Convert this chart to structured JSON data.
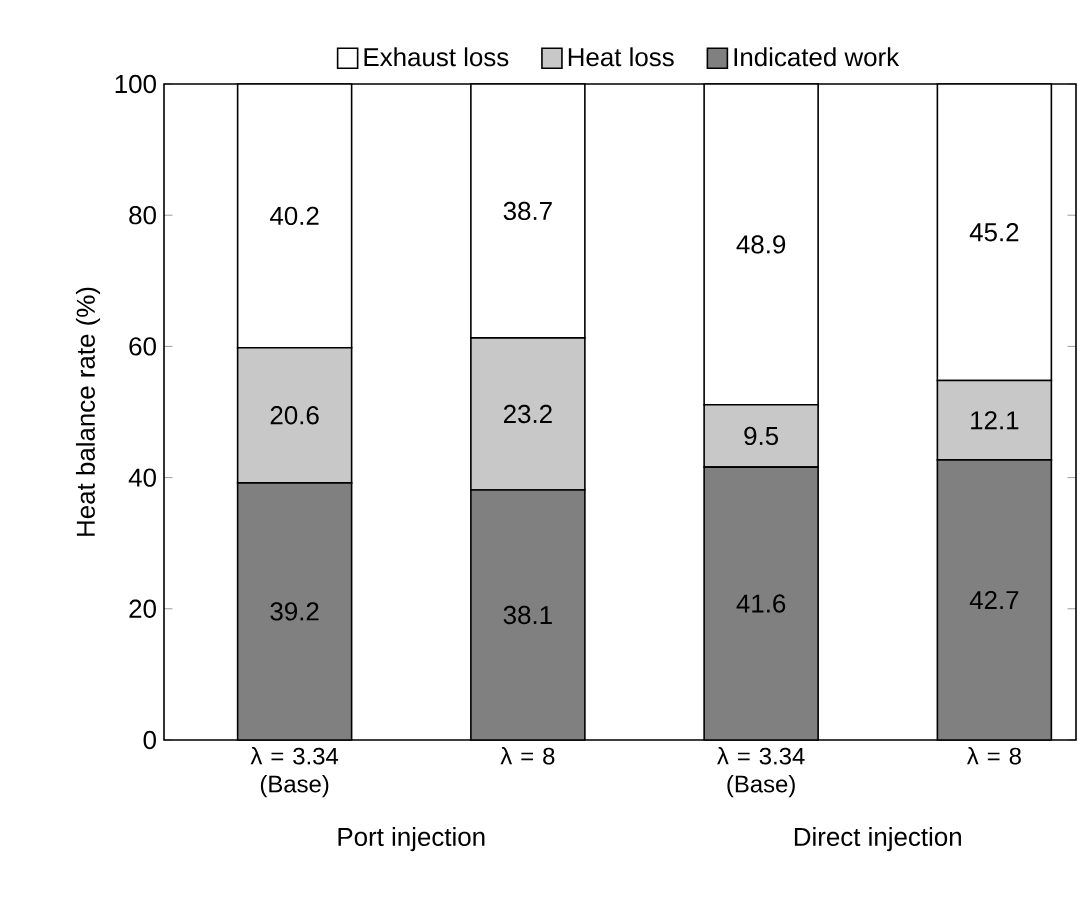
{
  "chart_data": {
    "type": "bar",
    "stacked": true,
    "ylabel": "Heat balance rate (%)",
    "categories": [
      "λ = 3.34 (Base)",
      "λ = 8",
      "λ = 3.34 (Base)",
      "λ = 8"
    ],
    "annotations": [
      "Port injection",
      "Direct injection"
    ],
    "series": [
      {
        "name": "Indicated work",
        "color": "#808080",
        "values": [
          39.2,
          38.1,
          41.6,
          42.7
        ],
        "value_labels": [
          "39.2",
          "38.1",
          "41.6",
          "42.7"
        ]
      },
      {
        "name": "Heat loss",
        "color": "#c8c8c8",
        "values": [
          20.6,
          23.2,
          9.5,
          12.1
        ],
        "value_labels": [
          "20.6",
          "23.2",
          "9.5",
          "12.1"
        ]
      },
      {
        "name": "Exhaust loss",
        "color": "#ffffff",
        "values": [
          40.2,
          38.7,
          48.9,
          45.2
        ],
        "value_labels": [
          "40.2",
          "38.7",
          "48.9",
          "45.2"
        ]
      }
    ],
    "ylim": [
      0,
      100
    ],
    "yticks": [
      0,
      20,
      40,
      60,
      80,
      100
    ],
    "data_labels": true,
    "legend": "top",
    "grid": false
  }
}
